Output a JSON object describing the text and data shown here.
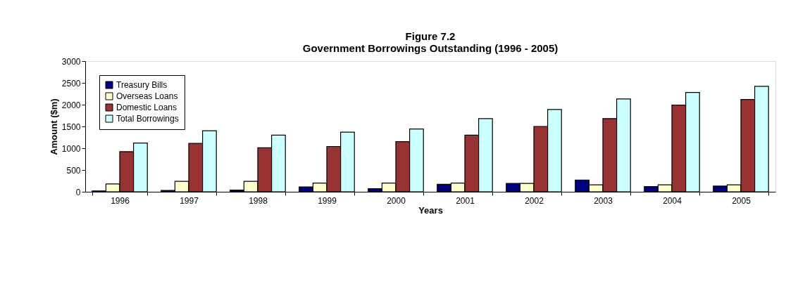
{
  "chart_data": {
    "type": "bar",
    "title": [
      "Figure 7.2",
      "Government  Borrowings Outstanding (1996 - 2005)"
    ],
    "xlabel": "Years",
    "ylabel": "Amount ($m)",
    "categories": [
      "1996",
      "1997",
      "1998",
      "1999",
      "2000",
      "2001",
      "2002",
      "2003",
      "2004",
      "2005"
    ],
    "series": [
      {
        "name": "Treasury Bills",
        "color": "#000080",
        "values": [
          20,
          30,
          40,
          110,
          70,
          170,
          190,
          270,
          120,
          130
        ]
      },
      {
        "name": "Overseas Loans",
        "color": "#ffffcc",
        "values": [
          180,
          240,
          240,
          200,
          200,
          200,
          190,
          160,
          160,
          160
        ]
      },
      {
        "name": "Domestic Loans",
        "color": "#993333",
        "values": [
          920,
          1110,
          1010,
          1040,
          1150,
          1300,
          1500,
          1680,
          1990,
          2120
        ]
      },
      {
        "name": "Total Borrowings",
        "color": "#ccffff",
        "values": [
          1120,
          1400,
          1300,
          1370,
          1440,
          1680,
          1890,
          2130,
          2280,
          2420
        ]
      }
    ],
    "ylim": [
      0,
      3000
    ],
    "yticks": [
      0,
      500,
      1000,
      1500,
      2000,
      2500,
      3000
    ],
    "grid": false,
    "legend": "top left"
  }
}
